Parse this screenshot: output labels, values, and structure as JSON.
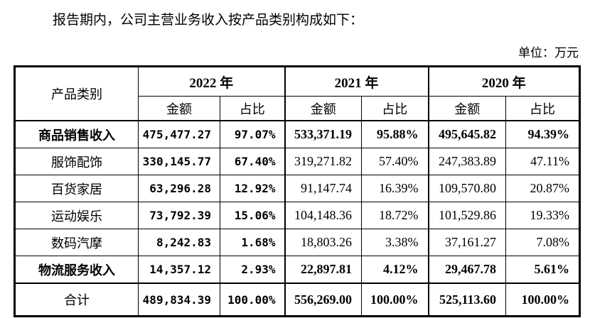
{
  "intro": "报告期内，公司主营业务收入按产品类别构成如下：",
  "unit_label": "单位：万元",
  "table": {
    "product_header": "产品类别",
    "year_groups": [
      {
        "year": "2022 年",
        "amount_label": "金额",
        "ratio_label": "占比"
      },
      {
        "year": "2021 年",
        "amount_label": "金额",
        "ratio_label": "占比"
      },
      {
        "year": "2020 年",
        "amount_label": "金额",
        "ratio_label": "占比"
      }
    ],
    "rows": [
      {
        "label": "商品销售收入",
        "cells": [
          "475,477.27",
          "97.07%",
          "533,371.19",
          "95.88%",
          "495,645.82",
          "94.39%"
        ]
      },
      {
        "label": "服饰配饰",
        "cells": [
          "330,145.77",
          "67.40%",
          "319,271.82",
          "57.40%",
          "247,383.89",
          "47.11%"
        ]
      },
      {
        "label": "百货家居",
        "cells": [
          "63,296.28",
          "12.92%",
          "91,147.74",
          "16.39%",
          "109,570.80",
          "20.87%"
        ]
      },
      {
        "label": "运动娱乐",
        "cells": [
          "73,792.39",
          "15.06%",
          "104,148.36",
          "18.72%",
          "101,529.86",
          "19.33%"
        ]
      },
      {
        "label": "数码汽摩",
        "cells": [
          "8,242.83",
          "1.68%",
          "18,803.26",
          "3.38%",
          "37,161.27",
          "7.08%"
        ]
      },
      {
        "label": "物流服务收入",
        "cells": [
          "14,357.12",
          "2.93%",
          "22,897.81",
          "4.12%",
          "29,467.78",
          "5.61%"
        ]
      },
      {
        "label": "合计",
        "cells": [
          "489,834.39",
          "100.00%",
          "556,269.00",
          "100.00%",
          "525,113.60",
          "100.00%"
        ]
      }
    ]
  }
}
